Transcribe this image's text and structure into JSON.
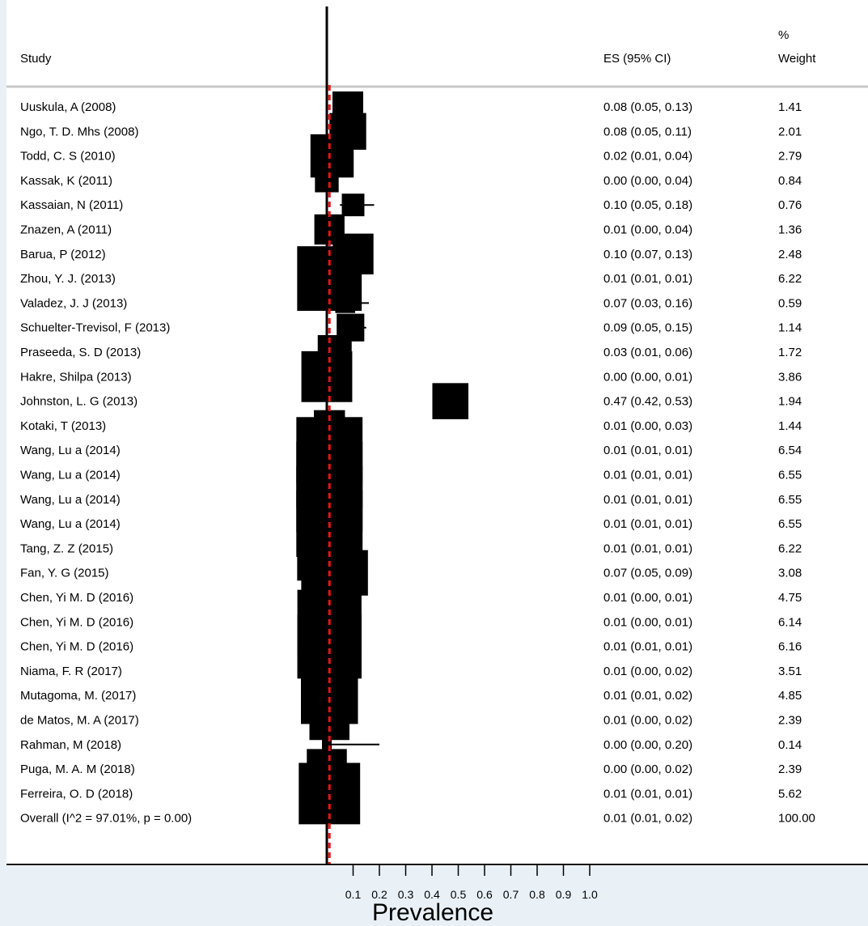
{
  "chart_data": {
    "type": "forest",
    "headers": {
      "study": "Study",
      "es": "ES (95% CI)",
      "weight_line1": "%",
      "weight_line2": "Weight"
    },
    "xlabel": "Prevalence",
    "xticks": [
      "0.1",
      "0.2",
      "0.3",
      "0.4",
      "0.5",
      "0.6",
      "0.7",
      "0.8",
      "0.9",
      "1.0"
    ],
    "null_line": 0,
    "studies": [
      {
        "label": "Uuskula, A (2008)",
        "es": 0.08,
        "lo": 0.05,
        "hi": 0.13,
        "es_text": "0.08 (0.05, 0.13)",
        "weight": "1.41"
      },
      {
        "label": "Ngo, T. D. Mhs (2008)",
        "es": 0.08,
        "lo": 0.05,
        "hi": 0.11,
        "es_text": "0.08 (0.05, 0.11)",
        "weight": "2.01"
      },
      {
        "label": "Todd, C. S (2010)",
        "es": 0.02,
        "lo": 0.01,
        "hi": 0.04,
        "es_text": "0.02 (0.01, 0.04)",
        "weight": "2.79"
      },
      {
        "label": "Kassak, K (2011)",
        "es": 0.0,
        "lo": 0.0,
        "hi": 0.04,
        "es_text": "0.00 (0.00, 0.04)",
        "weight": "0.84"
      },
      {
        "label": "Kassaian, N (2011)",
        "es": 0.1,
        "lo": 0.05,
        "hi": 0.18,
        "es_text": "0.10 (0.05, 0.18)",
        "weight": "0.76"
      },
      {
        "label": "Znazen, A (2011)",
        "es": 0.01,
        "lo": 0.0,
        "hi": 0.04,
        "es_text": "0.01 (0.00, 0.04)",
        "weight": "1.36"
      },
      {
        "label": "Barua, P (2012)",
        "es": 0.1,
        "lo": 0.07,
        "hi": 0.13,
        "es_text": "0.10 (0.07, 0.13)",
        "weight": "2.48"
      },
      {
        "label": "Zhou, Y. J.  (2013)",
        "es": 0.01,
        "lo": 0.01,
        "hi": 0.01,
        "es_text": "0.01 (0.01, 0.01)",
        "weight": "6.22"
      },
      {
        "label": "Valadez, J. J (2013)",
        "es": 0.07,
        "lo": 0.03,
        "hi": 0.16,
        "es_text": "0.07 (0.03, 0.16)",
        "weight": "0.59"
      },
      {
        "label": "Schuelter-Trevisol, F (2013)",
        "es": 0.09,
        "lo": 0.05,
        "hi": 0.15,
        "es_text": "0.09 (0.05, 0.15)",
        "weight": "1.14"
      },
      {
        "label": "Praseeda, S. D (2013)",
        "es": 0.03,
        "lo": 0.01,
        "hi": 0.06,
        "es_text": "0.03 (0.01, 0.06)",
        "weight": "1.72"
      },
      {
        "label": "Hakre, Shilpa (2013)",
        "es": 0.0,
        "lo": 0.0,
        "hi": 0.01,
        "es_text": "0.00 (0.00, 0.01)",
        "weight": "3.86"
      },
      {
        "label": "Johnston, L. G (2013)",
        "es": 0.47,
        "lo": 0.42,
        "hi": 0.53,
        "es_text": "0.47 (0.42, 0.53)",
        "weight": "1.94"
      },
      {
        "label": "Kotaki, T (2013)",
        "es": 0.01,
        "lo": 0.0,
        "hi": 0.03,
        "es_text": "0.01 (0.00, 0.03)",
        "weight": "1.44"
      },
      {
        "label": "Wang, Lu a (2014)",
        "es": 0.01,
        "lo": 0.01,
        "hi": 0.01,
        "es_text": "0.01 (0.01, 0.01)",
        "weight": "6.54"
      },
      {
        "label": "Wang, Lu a (2014)",
        "es": 0.01,
        "lo": 0.01,
        "hi": 0.01,
        "es_text": "0.01 (0.01, 0.01)",
        "weight": "6.55"
      },
      {
        "label": "Wang, Lu a (2014)",
        "es": 0.01,
        "lo": 0.01,
        "hi": 0.01,
        "es_text": "0.01 (0.01, 0.01)",
        "weight": "6.55"
      },
      {
        "label": "Wang, Lu a (2014)",
        "es": 0.01,
        "lo": 0.01,
        "hi": 0.01,
        "es_text": "0.01 (0.01, 0.01)",
        "weight": "6.55"
      },
      {
        "label": "Tang, Z. Z (2015)",
        "es": 0.01,
        "lo": 0.01,
        "hi": 0.01,
        "es_text": "0.01 (0.01, 0.01)",
        "weight": "6.22"
      },
      {
        "label": "Fan, Y. G (2015)",
        "es": 0.07,
        "lo": 0.05,
        "hi": 0.09,
        "es_text": "0.07 (0.05, 0.09)",
        "weight": "3.08"
      },
      {
        "label": "Chen, Yi M. D (2016)",
        "es": 0.01,
        "lo": 0.0,
        "hi": 0.01,
        "es_text": "0.01 (0.00, 0.01)",
        "weight": "4.75"
      },
      {
        "label": "Chen, Yi M. D (2016)",
        "es": 0.01,
        "lo": 0.0,
        "hi": 0.01,
        "es_text": "0.01 (0.00, 0.01)",
        "weight": "6.14"
      },
      {
        "label": "Chen, Yi M. D (2016)",
        "es": 0.01,
        "lo": 0.01,
        "hi": 0.01,
        "es_text": "0.01 (0.01, 0.01)",
        "weight": "6.16"
      },
      {
        "label": "Niama, F. R (2017)",
        "es": 0.01,
        "lo": 0.0,
        "hi": 0.02,
        "es_text": "0.01 (0.00, 0.02)",
        "weight": "3.51"
      },
      {
        "label": "Mutagoma, M. (2017)",
        "es": 0.01,
        "lo": 0.01,
        "hi": 0.02,
        "es_text": "0.01 (0.01, 0.02)",
        "weight": "4.85"
      },
      {
        "label": "de Matos, M. A (2017)",
        "es": 0.01,
        "lo": 0.0,
        "hi": 0.02,
        "es_text": "0.01 (0.00, 0.02)",
        "weight": "2.39"
      },
      {
        "label": "Rahman, M (2018)",
        "es": 0.0,
        "lo": 0.0,
        "hi": 0.2,
        "es_text": "0.00 (0.00, 0.20)",
        "weight": "0.14"
      },
      {
        "label": "Puga, M. A. M (2018)",
        "es": 0.0,
        "lo": 0.0,
        "hi": 0.02,
        "es_text": "0.00 (0.00, 0.02)",
        "weight": "2.39"
      },
      {
        "label": "Ferreira, O. D (2018)",
        "es": 0.01,
        "lo": 0.01,
        "hi": 0.01,
        "es_text": "0.01 (0.01, 0.01)",
        "weight": "5.62"
      }
    ],
    "overall": {
      "label": "Overall  (I^2 = 97.01%, p = 0.00)",
      "es": 0.01,
      "lo": 0.01,
      "hi": 0.02,
      "es_text": "0.01 (0.01, 0.02)",
      "weight": "100.00"
    },
    "colors": {
      "marker": "#000000",
      "overall_line": "#e8141b",
      "separator": "#c8c8c8"
    }
  }
}
